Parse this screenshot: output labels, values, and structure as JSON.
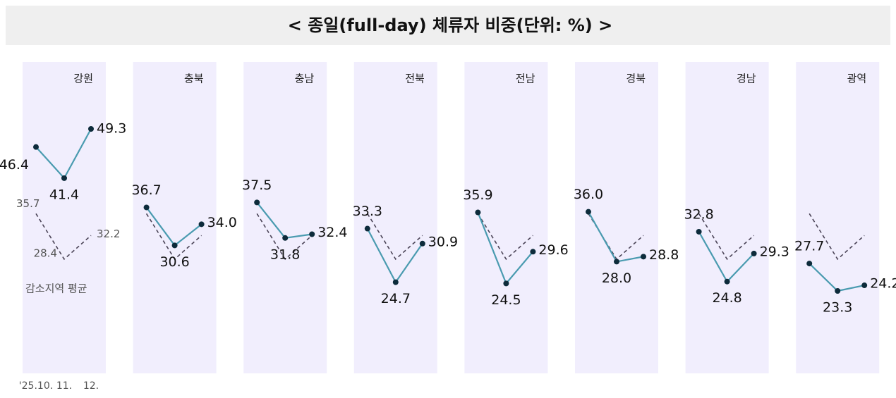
{
  "chart_data": {
    "type": "line",
    "title": "< 종일(full-day) 체류자 비중(단위: %) >",
    "categories": [
      "'25.10.",
      "11.",
      "12."
    ],
    "color": "#4a9bb0",
    "marker_color": "#0d2b3b",
    "panel_color": "#f1eefd",
    "series": [
      {
        "name": "강원",
        "values": [
          46.4,
          41.4,
          49.3
        ],
        "value_labels": [
          "46.4",
          "41.4",
          "49.3"
        ]
      },
      {
        "name": "충북",
        "values": [
          36.7,
          30.6,
          34.0
        ],
        "value_labels": [
          "36.7",
          "30.6",
          "34.0"
        ]
      },
      {
        "name": "충남",
        "values": [
          37.5,
          31.8,
          32.4
        ],
        "value_labels": [
          "37.5",
          "31.8",
          "32.4"
        ]
      },
      {
        "name": "전북",
        "values": [
          33.3,
          24.7,
          30.9
        ],
        "value_labels": [
          "33.3",
          "24.7",
          "30.9"
        ]
      },
      {
        "name": "전남",
        "values": [
          35.9,
          24.5,
          29.6
        ],
        "value_labels": [
          "35.9",
          "24.5",
          "29.6"
        ]
      },
      {
        "name": "경북",
        "values": [
          36.0,
          28.0,
          28.8
        ],
        "value_labels": [
          "36.0",
          "28.0",
          "28.8"
        ]
      },
      {
        "name": "경남",
        "values": [
          32.8,
          24.8,
          29.3
        ],
        "value_labels": [
          "32.8",
          "24.8",
          "29.3"
        ]
      },
      {
        "name": "광역",
        "values": [
          27.7,
          23.3,
          24.2
        ],
        "value_labels": [
          "27.7",
          "23.3",
          "24.2"
        ]
      }
    ],
    "average": {
      "name": "감소지역 평균",
      "color": "#4a4356",
      "values": [
        35.7,
        28.4,
        32.2
      ]
    }
  }
}
